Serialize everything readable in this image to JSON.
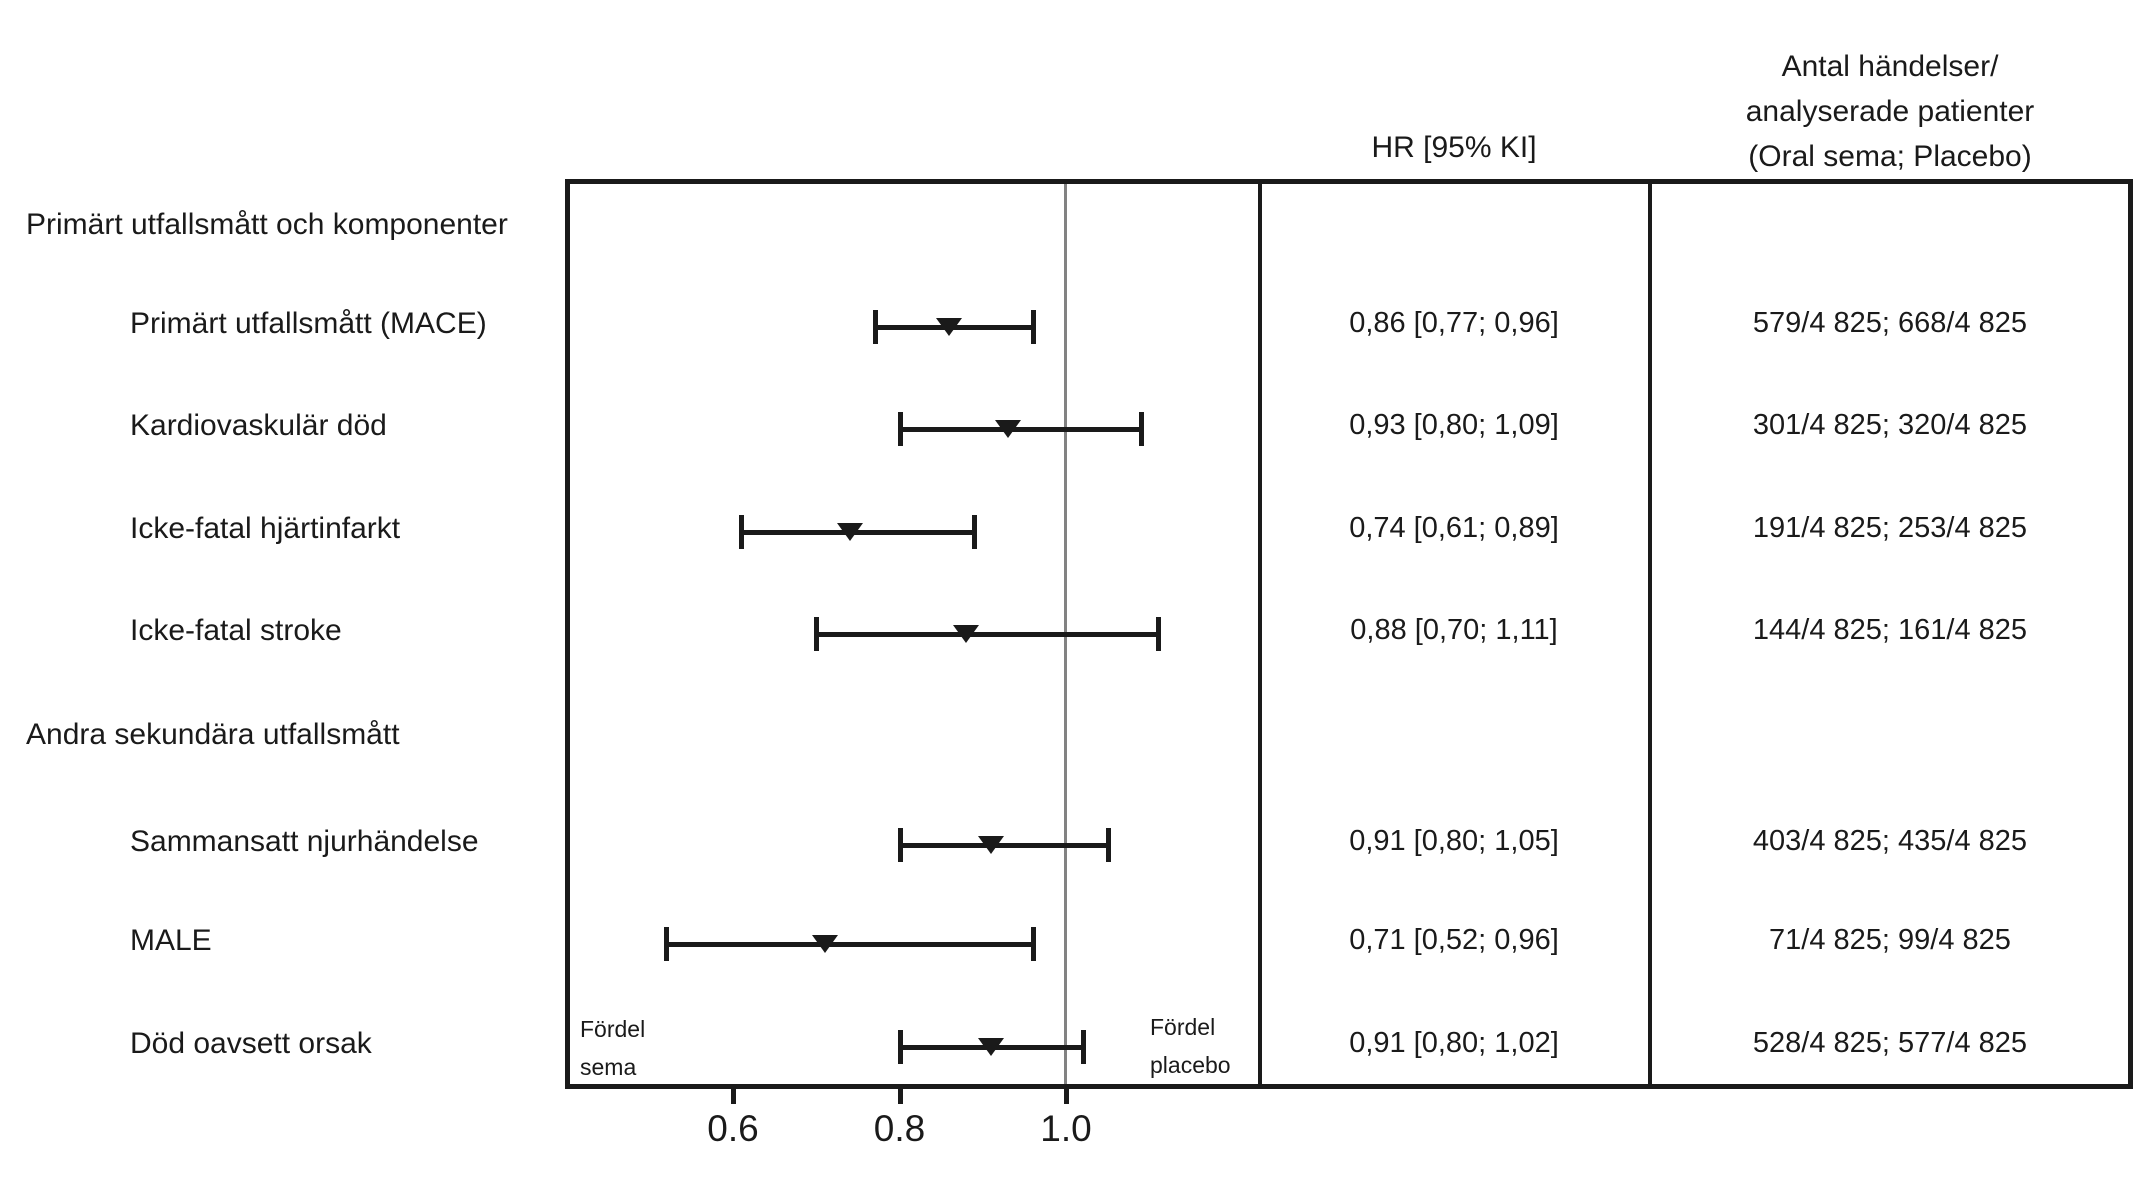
{
  "chart_data": {
    "type": "forest",
    "columns": {
      "hr_header": "HR [95% KI]",
      "events_header_lines": [
        "Antal händelser/",
        "analyserade patienter",
        "(Oral sema; Placebo)"
      ]
    },
    "axis": {
      "scale": "linear",
      "min": 0.4,
      "max": 1.235,
      "reference": 1.0,
      "tick_values": [
        0.6,
        0.8,
        1.0
      ],
      "tick_labels": [
        "0.6",
        "0.8",
        "1.0"
      ]
    },
    "favors_left": [
      "Fördel",
      "sema"
    ],
    "favors_right": [
      "Fördel",
      "placebo"
    ],
    "sections": [
      {
        "header": "Primärt utfallsmått och komponenter",
        "rows": [
          {
            "label": "Primärt utfallsmått (MACE)",
            "hr": 0.86,
            "lo": 0.77,
            "hi": 0.96,
            "hr_text": "0,86 [0,77; 0,96]",
            "events": "579/4 825; 668/4 825"
          },
          {
            "label": "Kardiovaskulär död",
            "hr": 0.93,
            "lo": 0.8,
            "hi": 1.09,
            "hr_text": "0,93 [0,80; 1,09]",
            "events": "301/4 825; 320/4 825"
          },
          {
            "label": "Icke-fatal hjärtinfarkt",
            "hr": 0.74,
            "lo": 0.61,
            "hi": 0.89,
            "hr_text": "0,74 [0,61; 0,89]",
            "events": "191/4 825; 253/4 825"
          },
          {
            "label": "Icke-fatal stroke",
            "hr": 0.88,
            "lo": 0.7,
            "hi": 1.11,
            "hr_text": "0,88 [0,70; 1,11]",
            "events": "144/4 825; 161/4 825"
          }
        ]
      },
      {
        "header": "Andra sekundära utfallsmått",
        "rows": [
          {
            "label": "Sammansatt njurhändelse",
            "hr": 0.91,
            "lo": 0.8,
            "hi": 1.05,
            "hr_text": "0,91 [0,80; 1,05]",
            "events": "403/4 825; 435/4 825"
          },
          {
            "label": "MALE",
            "hr": 0.71,
            "lo": 0.52,
            "hi": 0.96,
            "hr_text": "0,71 [0,52; 0,96]",
            "events": "71/4 825; 99/4 825"
          },
          {
            "label": "Död oavsett orsak",
            "hr": 0.91,
            "lo": 0.8,
            "hi": 1.02,
            "hr_text": "0,91 [0,80; 1,02]",
            "events": "528/4 825; 577/4 825"
          }
        ]
      }
    ],
    "colors": {
      "ink": "#1a1a1a",
      "section_band": "#bdbdbd",
      "reference_line": "#828282",
      "background": "#ffffff"
    }
  }
}
